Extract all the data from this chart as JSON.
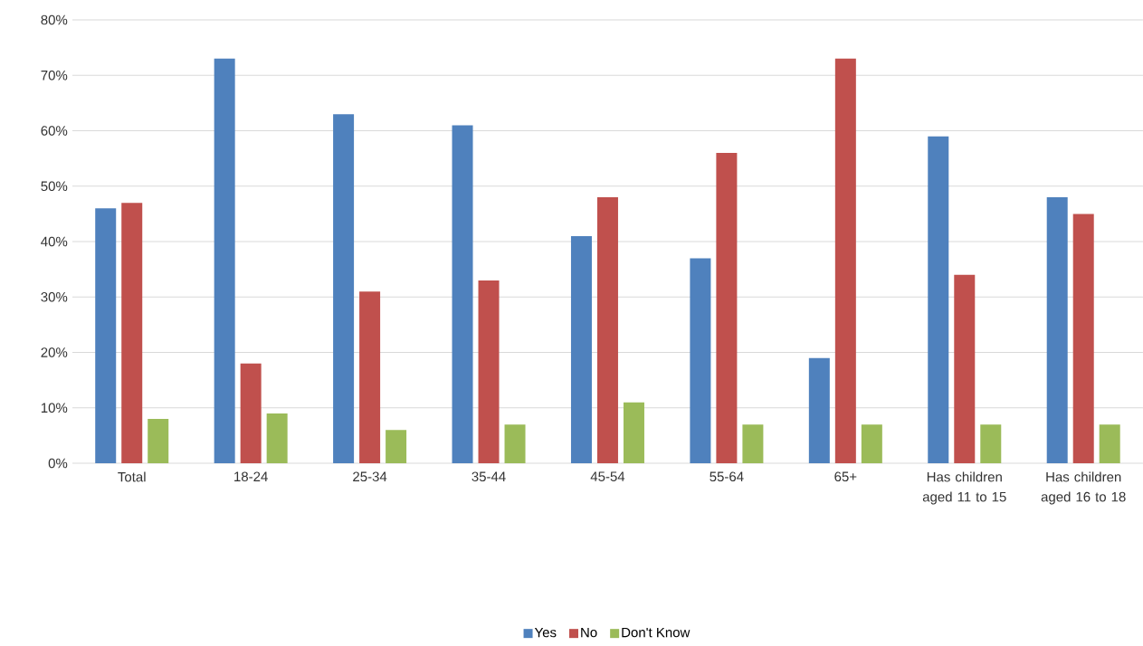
{
  "chart_data": {
    "type": "bar",
    "categories": [
      "Total",
      "18-24",
      "25-34",
      "35-44",
      "45-54",
      "55-64",
      "65+",
      "Has children aged 11 to 15",
      "Has children aged 16 to 18"
    ],
    "series": [
      {
        "name": "Yes",
        "color": "#4f81bd",
        "values": [
          46,
          73,
          63,
          61,
          41,
          37,
          19,
          59,
          48
        ]
      },
      {
        "name": "No",
        "color": "#c0504d",
        "values": [
          47,
          18,
          31,
          33,
          48,
          56,
          73,
          34,
          45
        ]
      },
      {
        "name": "Don't Know",
        "color": "#9bbb59",
        "values": [
          8,
          9,
          6,
          7,
          11,
          7,
          7,
          7,
          7
        ]
      }
    ],
    "ylim": [
      0,
      80
    ],
    "yticks": [
      {
        "value": 0,
        "label": "0%"
      },
      {
        "value": 10,
        "label": "10%"
      },
      {
        "value": 20,
        "label": "20%"
      },
      {
        "value": 30,
        "label": "30%"
      },
      {
        "value": 40,
        "label": "40%"
      },
      {
        "value": 50,
        "label": "50%"
      },
      {
        "value": 60,
        "label": "60%"
      },
      {
        "value": 70,
        "label": "70%"
      },
      {
        "value": 80,
        "label": "80%"
      }
    ],
    "grid": "y",
    "legend": "bottom"
  }
}
